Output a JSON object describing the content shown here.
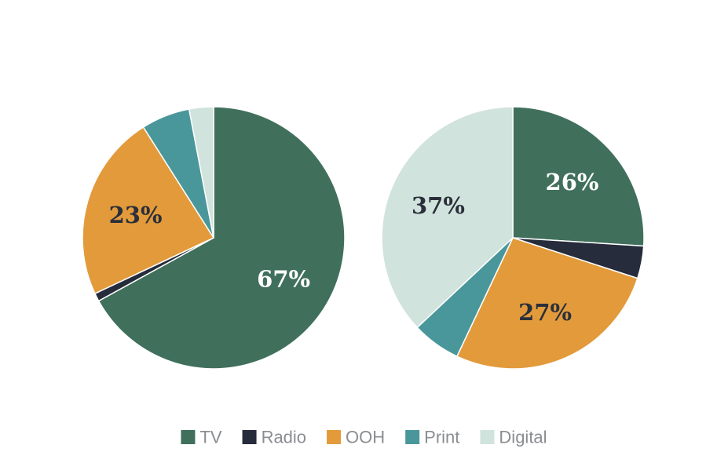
{
  "chart_data": [
    {
      "type": "pie",
      "categories": [
        "TV",
        "Radio",
        "OOH",
        "Print",
        "Digital"
      ],
      "values": [
        67,
        1,
        23,
        6,
        3
      ],
      "labels": [
        {
          "category": "TV",
          "text": "67%",
          "color": "#ffffff"
        },
        {
          "category": "OOH",
          "text": "23%",
          "color": "#2a2f3a"
        }
      ]
    },
    {
      "type": "pie",
      "categories": [
        "TV",
        "Radio",
        "OOH",
        "Print",
        "Digital"
      ],
      "values": [
        26,
        4,
        27,
        6,
        37
      ],
      "labels": [
        {
          "category": "TV",
          "text": "26%",
          "color": "#ffffff"
        },
        {
          "category": "OOH",
          "text": "27%",
          "color": "#2a2f3a"
        },
        {
          "category": "Digital",
          "text": "37%",
          "color": "#2a2f3a"
        }
      ]
    }
  ],
  "legend": {
    "placement": "bottom",
    "items": [
      {
        "label": "TV",
        "color": "#40705c"
      },
      {
        "label": "Radio",
        "color": "#262c3b"
      },
      {
        "label": "OOH",
        "color": "#e39a3b"
      },
      {
        "label": "Print",
        "color": "#4a979b"
      },
      {
        "label": "Digital",
        "color": "#d0e3dc"
      }
    ]
  }
}
